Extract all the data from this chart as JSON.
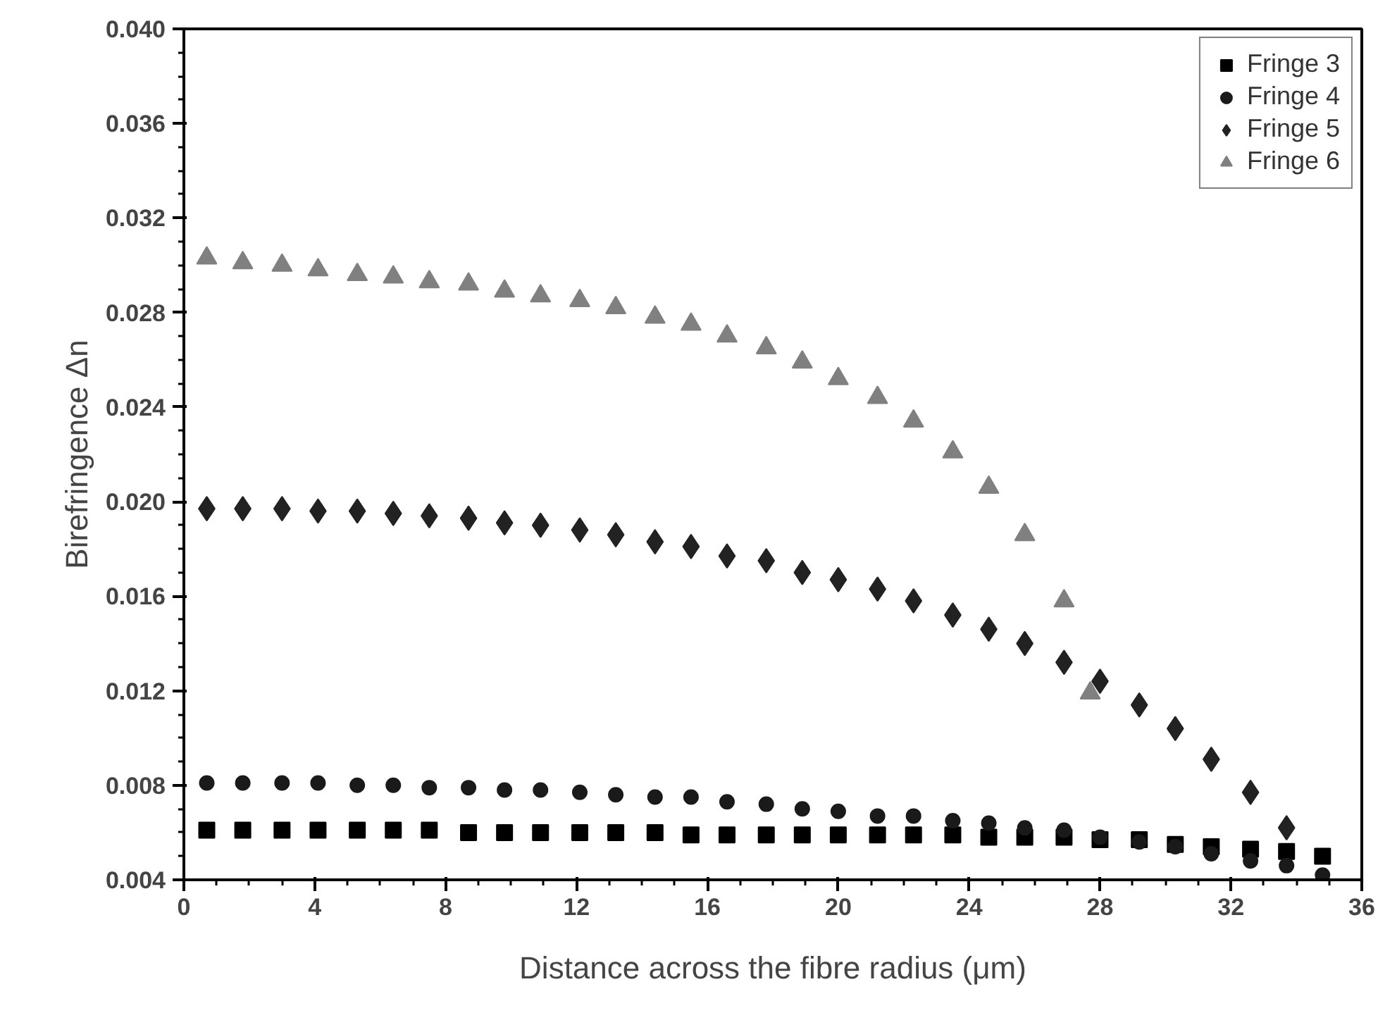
{
  "chart_data": {
    "type": "scatter",
    "xlabel": "Distance across the fibre radius (μm)",
    "ylabel": "Birefringence Δn",
    "x": [
      0.7,
      1.8,
      3.0,
      4.1,
      5.3,
      6.4,
      7.5,
      8.7,
      9.8,
      10.9,
      12.1,
      13.2,
      14.4,
      15.5,
      16.6,
      17.8,
      18.9,
      20.0,
      21.2,
      22.3,
      23.5,
      24.6,
      25.7,
      26.9,
      28.0,
      29.2,
      30.3,
      31.4,
      32.6,
      33.7,
      34.8
    ],
    "series": [
      {
        "name": "Fringe 3",
        "color": "#000000",
        "marker": "square",
        "values": [
          0.0061,
          0.0061,
          0.0061,
          0.0061,
          0.0061,
          0.0061,
          0.0061,
          0.006,
          0.006,
          0.006,
          0.006,
          0.006,
          0.006,
          0.0059,
          0.0059,
          0.0059,
          0.0059,
          0.0059,
          0.0059,
          0.0059,
          0.0059,
          0.0058,
          0.0058,
          0.0058,
          0.0057,
          0.0057,
          0.0055,
          0.0054,
          0.0053,
          0.0052,
          0.005
        ]
      },
      {
        "name": "Fringe 4",
        "color": "#1a1a1a",
        "marker": "circle",
        "values": [
          0.0081,
          0.0081,
          0.0081,
          0.0081,
          0.008,
          0.008,
          0.0079,
          0.0079,
          0.0078,
          0.0078,
          0.0077,
          0.0076,
          0.0075,
          0.0075,
          0.0073,
          0.0072,
          0.007,
          0.0069,
          0.0067,
          0.0067,
          0.0065,
          0.0064,
          0.0062,
          0.0061,
          0.0058,
          0.0056,
          0.0054,
          0.0051,
          0.0048,
          0.0046,
          0.0042
        ]
      },
      {
        "name": "Fringe 5",
        "color": "#222222",
        "marker": "diamond",
        "x": [
          0.7,
          1.8,
          3.0,
          4.1,
          5.3,
          6.4,
          7.5,
          8.7,
          9.8,
          10.9,
          12.1,
          13.2,
          14.4,
          15.5,
          16.6,
          17.8,
          18.9,
          20.0,
          21.2,
          22.3,
          23.5,
          24.6,
          25.7,
          26.9,
          28.0,
          29.2,
          30.3,
          31.4,
          32.6,
          33.7
        ],
        "values": [
          0.0197,
          0.0197,
          0.0197,
          0.0196,
          0.0196,
          0.0195,
          0.0194,
          0.0193,
          0.0191,
          0.019,
          0.0188,
          0.0186,
          0.0183,
          0.0181,
          0.0177,
          0.0175,
          0.017,
          0.0167,
          0.0163,
          0.0158,
          0.0152,
          0.0146,
          0.014,
          0.0132,
          0.0124,
          0.0114,
          0.0104,
          0.0091,
          0.0077,
          0.0062
        ]
      },
      {
        "name": "Fringe 6",
        "color": "#808080",
        "marker": "triangle",
        "x": [
          0.7,
          1.8,
          3.0,
          4.1,
          5.3,
          6.4,
          7.5,
          8.7,
          9.8,
          10.9,
          12.1,
          13.2,
          14.4,
          15.5,
          16.6,
          17.8,
          18.9,
          20.0,
          21.2,
          22.3,
          23.5,
          24.6,
          25.7,
          26.9,
          27.7
        ],
        "values": [
          0.0303,
          0.0301,
          0.03,
          0.0298,
          0.0296,
          0.0295,
          0.0293,
          0.0292,
          0.0289,
          0.0287,
          0.0285,
          0.0282,
          0.0278,
          0.0275,
          0.027,
          0.0265,
          0.0259,
          0.0252,
          0.0244,
          0.0234,
          0.0221,
          0.0206,
          0.0186,
          0.0158,
          0.0119
        ]
      }
    ],
    "xlim": [
      0,
      36
    ],
    "xticks": [
      0,
      4,
      8,
      12,
      16,
      20,
      24,
      28,
      32,
      36
    ],
    "ylim": [
      0.004,
      0.04
    ],
    "yticks": [
      {
        "value": 0.004,
        "label": "0.004"
      },
      {
        "value": 0.008,
        "label": "0.008"
      },
      {
        "value": 0.012,
        "label": "0.012"
      },
      {
        "value": 0.016,
        "label": "0.016"
      },
      {
        "value": 0.02,
        "label": "0.020"
      },
      {
        "value": 0.024,
        "label": "0.024"
      },
      {
        "value": 0.028,
        "label": "0.028"
      },
      {
        "value": 0.032,
        "label": "0.032"
      },
      {
        "value": 0.036,
        "label": "0.036"
      },
      {
        "value": 0.04,
        "label": "0.040"
      }
    ],
    "grid": false,
    "legend": "top right"
  }
}
